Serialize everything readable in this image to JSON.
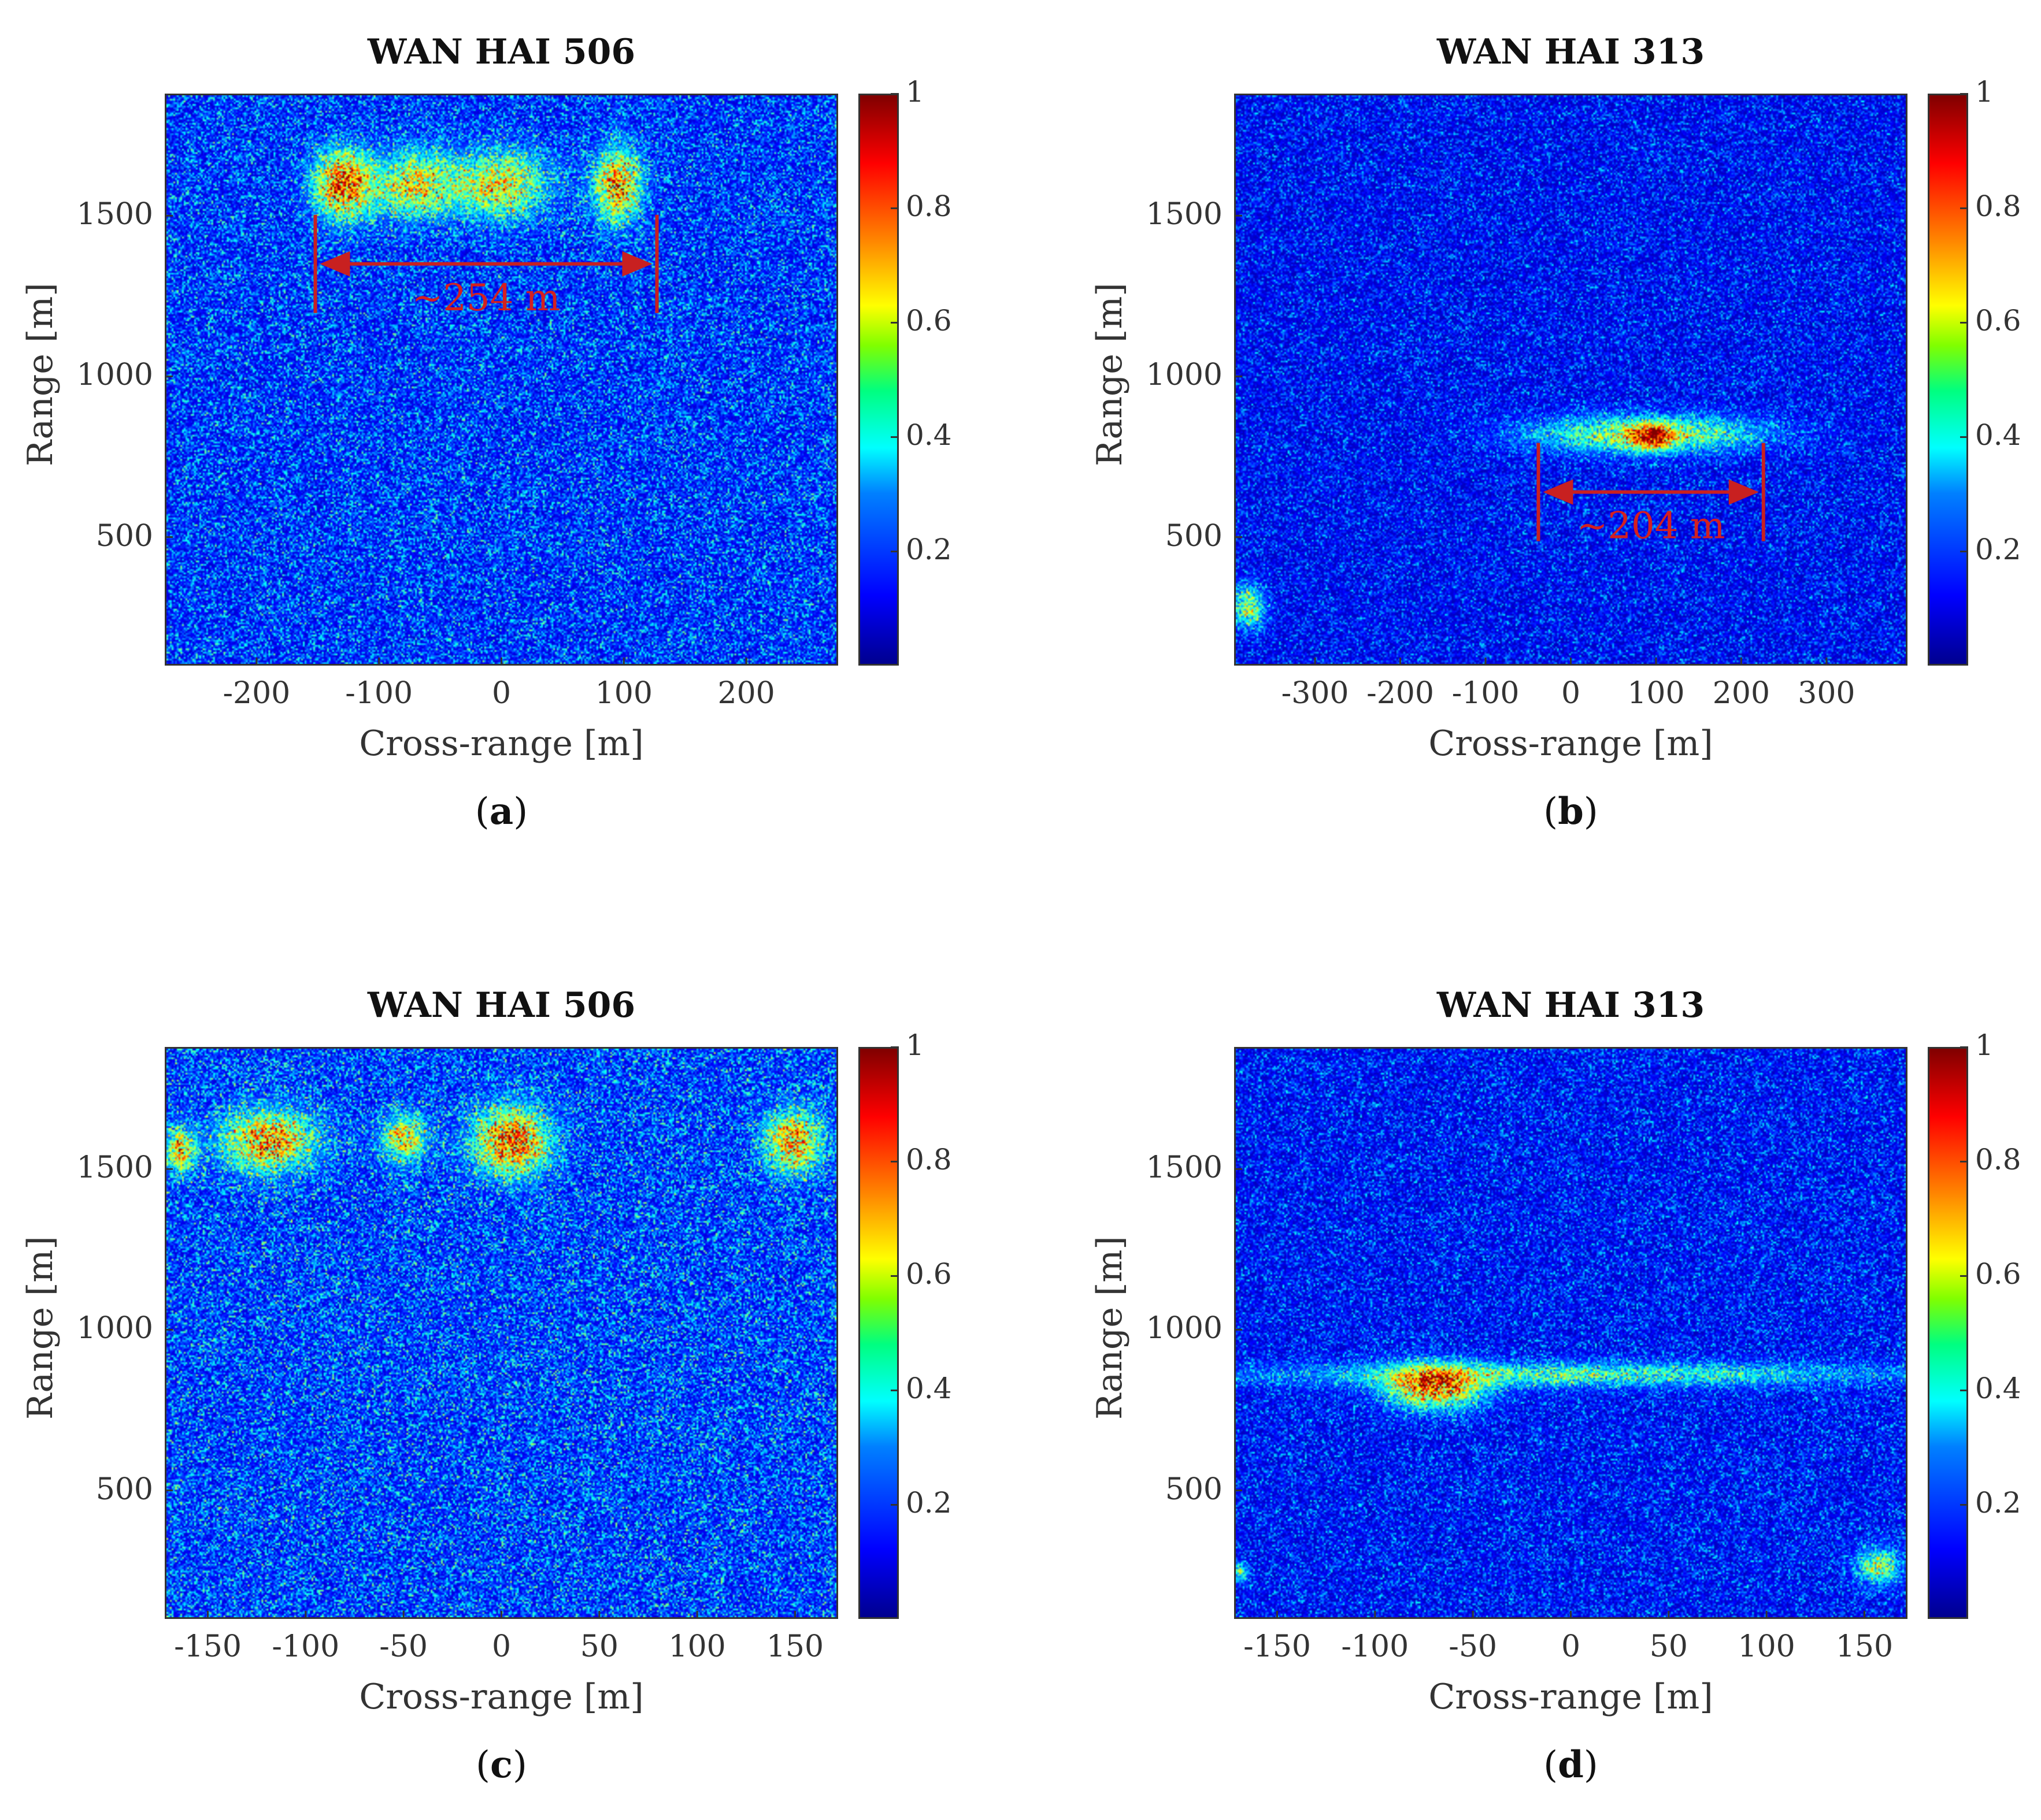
{
  "chart_data": [
    {
      "type": "heatmap",
      "title": "WAN HAI 506",
      "xlabel": "Cross-range [m]",
      "ylabel": "Range [m]",
      "xlim": [
        -275,
        275
      ],
      "ylim": [
        100,
        1880
      ],
      "xticks": [
        -200,
        -100,
        0,
        100,
        200
      ],
      "yticks": [
        500,
        1000,
        1500
      ],
      "colorbar": {
        "min": 0,
        "max": 1,
        "ticks": [
          0.2,
          0.4,
          0.6,
          0.8,
          1
        ],
        "colormap": "jet"
      },
      "background_level": 0.22,
      "annotation": {
        "text": "~254 m",
        "x_start": -152,
        "x_end": 127,
        "y": 1350
      },
      "caption_letter": "a",
      "features": [
        {
          "x": -130,
          "y": 1600,
          "x_extent": 25,
          "y_extent": 110,
          "intensity": 0.75
        },
        {
          "x": -70,
          "y": 1600,
          "x_extent": 35,
          "y_extent": 110,
          "intensity": 0.5
        },
        {
          "x": 0,
          "y": 1600,
          "x_extent": 40,
          "y_extent": 110,
          "intensity": 0.5
        },
        {
          "x": 95,
          "y": 1600,
          "x_extent": 20,
          "y_extent": 120,
          "intensity": 0.65
        }
      ]
    },
    {
      "type": "heatmap",
      "title": "WAN HAI 313",
      "xlabel": "Cross-range [m]",
      "ylabel": "Range [m]",
      "xlim": [
        -395,
        395
      ],
      "ylim": [
        100,
        1880
      ],
      "xticks": [
        -300,
        -200,
        -100,
        0,
        100,
        200,
        300
      ],
      "yticks": [
        500,
        1000,
        1500
      ],
      "colorbar": {
        "min": 0,
        "max": 1,
        "ticks": [
          0.2,
          0.4,
          0.6,
          0.8,
          1
        ],
        "colormap": "jet"
      },
      "background_level": 0.16,
      "annotation": {
        "text": "~204 m",
        "x_start": -38,
        "x_end": 226,
        "y": 640
      },
      "caption_letter": "b",
      "features": [
        {
          "x": 90,
          "y": 820,
          "x_extent": 140,
          "y_extent": 60,
          "intensity": 0.5
        },
        {
          "x": 95,
          "y": 810,
          "x_extent": 25,
          "y_extent": 40,
          "intensity": 0.6
        },
        {
          "x": -380,
          "y": 280,
          "x_extent": 20,
          "y_extent": 70,
          "intensity": 0.45
        }
      ]
    },
    {
      "type": "heatmap",
      "title": "WAN HAI 506",
      "xlabel": "Cross-range [m]",
      "ylabel": "Range [m]",
      "xlim": [
        -172,
        172
      ],
      "ylim": [
        100,
        1880
      ],
      "xticks": [
        -150,
        -100,
        -50,
        0,
        50,
        100,
        150
      ],
      "yticks": [
        500,
        1000,
        1500
      ],
      "colorbar": {
        "min": 0,
        "max": 1,
        "ticks": [
          0.2,
          0.4,
          0.6,
          0.8,
          1
        ],
        "colormap": "jet"
      },
      "background_level": 0.24,
      "caption_letter": "c",
      "features": [
        {
          "x": -165,
          "y": 1560,
          "x_extent": 8,
          "y_extent": 70,
          "intensity": 0.55
        },
        {
          "x": -120,
          "y": 1590,
          "x_extent": 25,
          "y_extent": 100,
          "intensity": 0.6
        },
        {
          "x": -50,
          "y": 1600,
          "x_extent": 12,
          "y_extent": 80,
          "intensity": 0.5
        },
        {
          "x": 5,
          "y": 1590,
          "x_extent": 20,
          "y_extent": 110,
          "intensity": 0.7
        },
        {
          "x": 150,
          "y": 1590,
          "x_extent": 15,
          "y_extent": 100,
          "intensity": 0.6
        }
      ]
    },
    {
      "type": "heatmap",
      "title": "WAN HAI 313",
      "xlabel": "Cross-range [m]",
      "ylabel": "Range [m]",
      "xlim": [
        -172,
        172
      ],
      "ylim": [
        100,
        1880
      ],
      "xticks": [
        -150,
        -100,
        -50,
        0,
        50,
        100,
        150
      ],
      "yticks": [
        500,
        1000,
        1500
      ],
      "colorbar": {
        "min": 0,
        "max": 1,
        "ticks": [
          0.2,
          0.4,
          0.6,
          0.8,
          1
        ],
        "colormap": "jet"
      },
      "background_level": 0.17,
      "caption_letter": "d",
      "features": [
        {
          "x": -70,
          "y": 820,
          "x_extent": 25,
          "y_extent": 70,
          "intensity": 0.75
        },
        {
          "x": 0,
          "y": 860,
          "x_extent": 170,
          "y_extent": 40,
          "intensity": 0.35
        },
        {
          "x": 158,
          "y": 260,
          "x_extent": 12,
          "y_extent": 60,
          "intensity": 0.45
        },
        {
          "x": -170,
          "y": 240,
          "x_extent": 4,
          "y_extent": 30,
          "intensity": 0.4
        }
      ]
    }
  ]
}
